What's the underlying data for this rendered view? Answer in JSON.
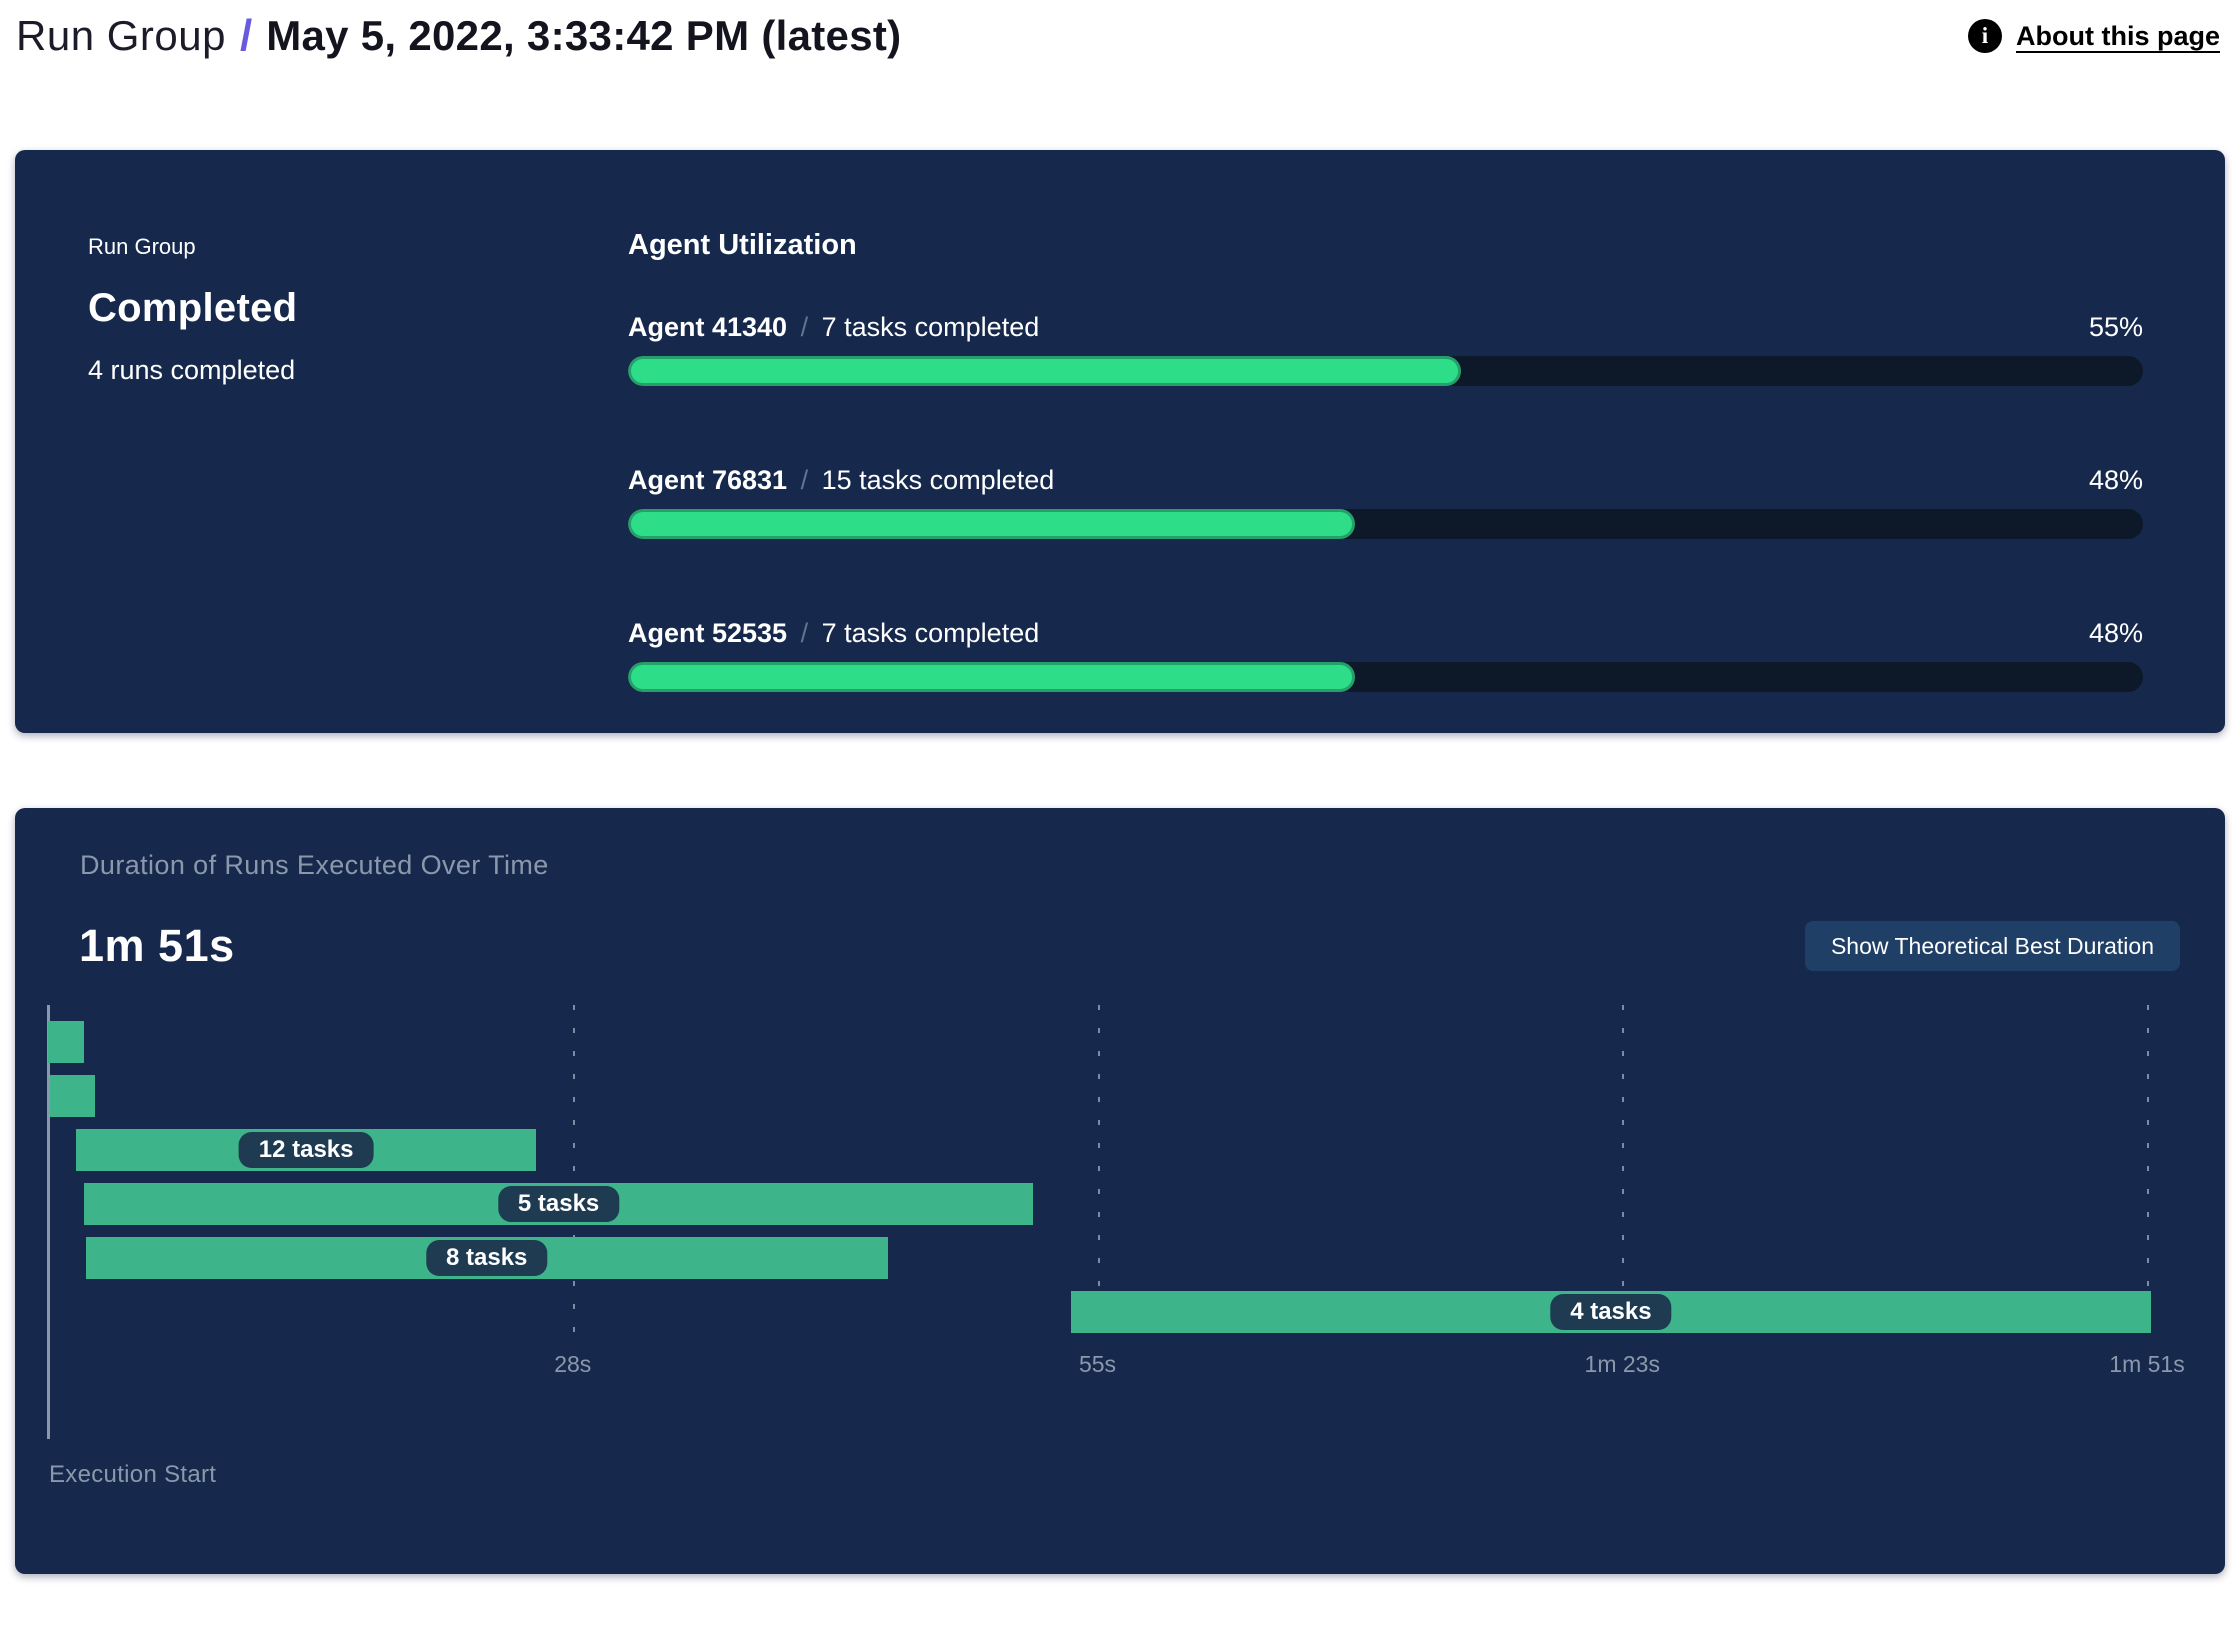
{
  "header": {
    "breadcrumb_root": "Run Group",
    "separator": "/",
    "title": "May 5, 2022, 3:33:42 PM (latest)",
    "about_link": "About this page",
    "info_icon_glyph": "i"
  },
  "summary": {
    "label": "Run Group",
    "status": "Completed",
    "runs_completed": "4 runs completed"
  },
  "utilization": {
    "title": "Agent Utilization",
    "separator": "/",
    "agents": [
      {
        "name": "Agent 41340",
        "tasks": "7 tasks completed",
        "percent": "55%",
        "value": 55
      },
      {
        "name": "Agent 76831",
        "tasks": "15 tasks completed",
        "percent": "48%",
        "value": 48
      },
      {
        "name": "Agent 52535",
        "tasks": "7 tasks completed",
        "percent": "48%",
        "value": 48
      }
    ]
  },
  "duration": {
    "title": "Duration of Runs Executed Over Time",
    "total": "1m 51s",
    "button_label": "Show Theoretical Best Duration",
    "axis": {
      "origin_label": "Execution Start",
      "ticks": [
        {
          "label": "28s",
          "s": 27.75
        },
        {
          "label": "55s",
          "s": 55.5
        },
        {
          "label": "1m 23s",
          "s": 83.25
        },
        {
          "label": "1m 51s",
          "s": 111
        }
      ]
    },
    "runs": [
      {
        "label": "",
        "start_s": 0,
        "end_s": 1.9
      },
      {
        "label": "",
        "start_s": 0.1,
        "end_s": 2.5
      },
      {
        "label": "12 tasks",
        "start_s": 1.5,
        "end_s": 25.8
      },
      {
        "label": "5 tasks",
        "start_s": 1.9,
        "end_s": 52.1
      },
      {
        "label": "8 tasks",
        "start_s": 2.0,
        "end_s": 44.4
      },
      {
        "label": "4 tasks",
        "start_s": 54.1,
        "end_s": 111.2
      }
    ]
  },
  "colors": {
    "panel_bg": "#16294c",
    "progress_track": "#0d1828",
    "progress_fill": "#2edd87",
    "progress_fill_border": "#26a06a",
    "gantt_bar": "#3db489",
    "badge_bg": "#1e3b52",
    "muted_text": "#8b98ac",
    "accent_slash": "#6a5ae0",
    "button_bg": "#1f3f66"
  },
  "chart_data": [
    {
      "type": "bar",
      "title": "Agent Utilization",
      "orientation": "horizontal",
      "categories": [
        "Agent 41340",
        "Agent 76831",
        "Agent 52535"
      ],
      "values": [
        55,
        48,
        48
      ],
      "value_unit": "%",
      "tasks_completed": [
        7,
        15,
        7
      ],
      "xlim": [
        0,
        100
      ],
      "grid": false,
      "legend": false
    },
    {
      "type": "bar",
      "subtype": "gantt-timeline",
      "title": "Duration of Runs Executed Over Time",
      "total_duration": "1m 51s",
      "xlabel": "Execution Start",
      "xlim_seconds": [
        0,
        111
      ],
      "tick_labels": [
        "28s",
        "55s",
        "1m 23s",
        "1m 51s"
      ],
      "tick_seconds": [
        27.75,
        55.5,
        83.25,
        111
      ],
      "grid": "dashed-vertical",
      "series": [
        {
          "name": "run-1",
          "start_s": 0,
          "end_s": 1.9,
          "tasks": null
        },
        {
          "name": "run-2",
          "start_s": 0.1,
          "end_s": 2.5,
          "tasks": null
        },
        {
          "name": "run-3",
          "start_s": 1.5,
          "end_s": 25.8,
          "tasks": 12
        },
        {
          "name": "run-4",
          "start_s": 1.9,
          "end_s": 52.1,
          "tasks": 5
        },
        {
          "name": "run-5",
          "start_s": 2.0,
          "end_s": 44.4,
          "tasks": 8
        },
        {
          "name": "run-6",
          "start_s": 54.1,
          "end_s": 111.2,
          "tasks": 4
        }
      ]
    }
  ]
}
